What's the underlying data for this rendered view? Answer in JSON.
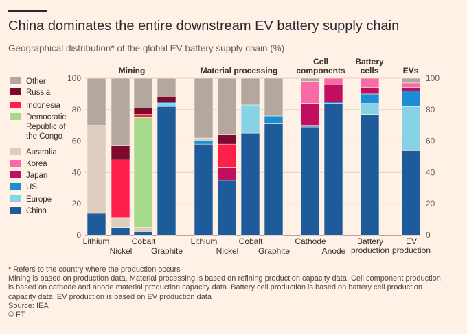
{
  "header": {
    "title": "China dominates the entire downstream EV battery supply chain",
    "subtitle": "Geographical distribution* of the global EV battery supply chain (%)"
  },
  "colors": {
    "China": "#1e5b9a",
    "Europe": "#86d3e6",
    "US": "#1a8fd6",
    "Japan": "#c20e5f",
    "Korea": "#f86ba7",
    "Australia": "#ddcdc1",
    "Democratic Republic of the Congo": "#a7d98a",
    "Indonesia": "#ff1f4b",
    "Russia": "#7e0a2e",
    "Other": "#b4a89e"
  },
  "chart_data": {
    "type": "bar",
    "stacked": true,
    "ylim": [
      0,
      100
    ],
    "yticks": [
      0,
      20,
      40,
      60,
      80,
      100
    ],
    "grid": true,
    "legend_position": "left",
    "legend": [
      "Other",
      "Russia",
      "Indonesia",
      "Democratic Republic of the Congo",
      "Australia",
      "Korea",
      "Japan",
      "US",
      "Europe",
      "China"
    ],
    "groups": [
      {
        "name": "Mining",
        "categories": [
          "Lithium",
          "Nickel",
          "Cobalt",
          "Graphite"
        ]
      },
      {
        "name": "Material processing",
        "categories": [
          "Lithium",
          "Nickel",
          "Cobalt",
          "Graphite"
        ]
      },
      {
        "name": "Cell components",
        "categories": [
          "Cathode",
          "Anode"
        ]
      },
      {
        "name": "Battery cells",
        "categories": [
          "Battery production"
        ]
      },
      {
        "name": "EVs",
        "categories": [
          "EV production"
        ]
      }
    ],
    "bars": [
      {
        "group": "Mining",
        "label": "Lithium",
        "segments": [
          {
            "name": "China",
            "value": 14
          },
          {
            "name": "Australia",
            "value": 56
          },
          {
            "name": "Other",
            "value": 30
          }
        ]
      },
      {
        "group": "Mining",
        "label": "Nickel",
        "segments": [
          {
            "name": "China",
            "value": 5
          },
          {
            "name": "Australia",
            "value": 6
          },
          {
            "name": "Indonesia",
            "value": 37
          },
          {
            "name": "Russia",
            "value": 9
          },
          {
            "name": "Other",
            "value": 43
          }
        ]
      },
      {
        "group": "Mining",
        "label": "Cobalt",
        "segments": [
          {
            "name": "China",
            "value": 2
          },
          {
            "name": "Australia",
            "value": 3
          },
          {
            "name": "Democratic Republic of the Congo",
            "value": 70
          },
          {
            "name": "Indonesia",
            "value": 2
          },
          {
            "name": "Russia",
            "value": 4
          },
          {
            "name": "Other",
            "value": 19
          }
        ]
      },
      {
        "group": "Mining",
        "label": "Graphite",
        "segments": [
          {
            "name": "China",
            "value": 82
          },
          {
            "name": "Europe",
            "value": 2
          },
          {
            "name": "US",
            "value": 1
          },
          {
            "name": "Russia",
            "value": 3
          },
          {
            "name": "Other",
            "value": 12
          }
        ]
      },
      {
        "group": "Material processing",
        "label": "Lithium",
        "segments": [
          {
            "name": "China",
            "value": 58
          },
          {
            "name": "US",
            "value": 2
          },
          {
            "name": "Australia",
            "value": 2
          },
          {
            "name": "Other",
            "value": 38
          }
        ]
      },
      {
        "group": "Material processing",
        "label": "Nickel",
        "segments": [
          {
            "name": "China",
            "value": 35
          },
          {
            "name": "Japan",
            "value": 8
          },
          {
            "name": "Indonesia",
            "value": 15
          },
          {
            "name": "Russia",
            "value": 6
          },
          {
            "name": "Other",
            "value": 36
          }
        ]
      },
      {
        "group": "Material processing",
        "label": "Cobalt",
        "segments": [
          {
            "name": "China",
            "value": 65
          },
          {
            "name": "Europe",
            "value": 18
          },
          {
            "name": "Other",
            "value": 17
          }
        ]
      },
      {
        "group": "Material processing",
        "label": "Graphite",
        "segments": [
          {
            "name": "China",
            "value": 71
          },
          {
            "name": "US",
            "value": 5
          },
          {
            "name": "Other",
            "value": 24
          }
        ]
      },
      {
        "group": "Cell components",
        "label": "Cathode",
        "segments": [
          {
            "name": "China",
            "value": 69
          },
          {
            "name": "US",
            "value": 1
          },
          {
            "name": "Japan",
            "value": 14
          },
          {
            "name": "Korea",
            "value": 14
          },
          {
            "name": "Other",
            "value": 2
          }
        ]
      },
      {
        "group": "Cell components",
        "label": "Anode",
        "segments": [
          {
            "name": "China",
            "value": 84
          },
          {
            "name": "US",
            "value": 1
          },
          {
            "name": "Japan",
            "value": 11
          },
          {
            "name": "Korea",
            "value": 4
          }
        ]
      },
      {
        "group": "Battery cells",
        "label": "Battery production",
        "segments": [
          {
            "name": "China",
            "value": 77
          },
          {
            "name": "Europe",
            "value": 7
          },
          {
            "name": "US",
            "value": 6
          },
          {
            "name": "Japan",
            "value": 4
          },
          {
            "name": "Korea",
            "value": 6
          }
        ]
      },
      {
        "group": "EVs",
        "label": "EV production",
        "segments": [
          {
            "name": "China",
            "value": 54
          },
          {
            "name": "Europe",
            "value": 28
          },
          {
            "name": "US",
            "value": 10
          },
          {
            "name": "Japan",
            "value": 2
          },
          {
            "name": "Korea",
            "value": 3
          },
          {
            "name": "Other",
            "value": 3
          }
        ]
      }
    ]
  },
  "notes": [
    "* Refers to the country where the production occurs",
    "Mining is based on production data. Material processing is based on refining production capacity data. Cell component production",
    "is based on cathode and anode material production capacity data. Battery cell production is based on battery cell production",
    "capacity data. EV production is based on EV production data",
    "Source: IEA",
    "© FT"
  ]
}
